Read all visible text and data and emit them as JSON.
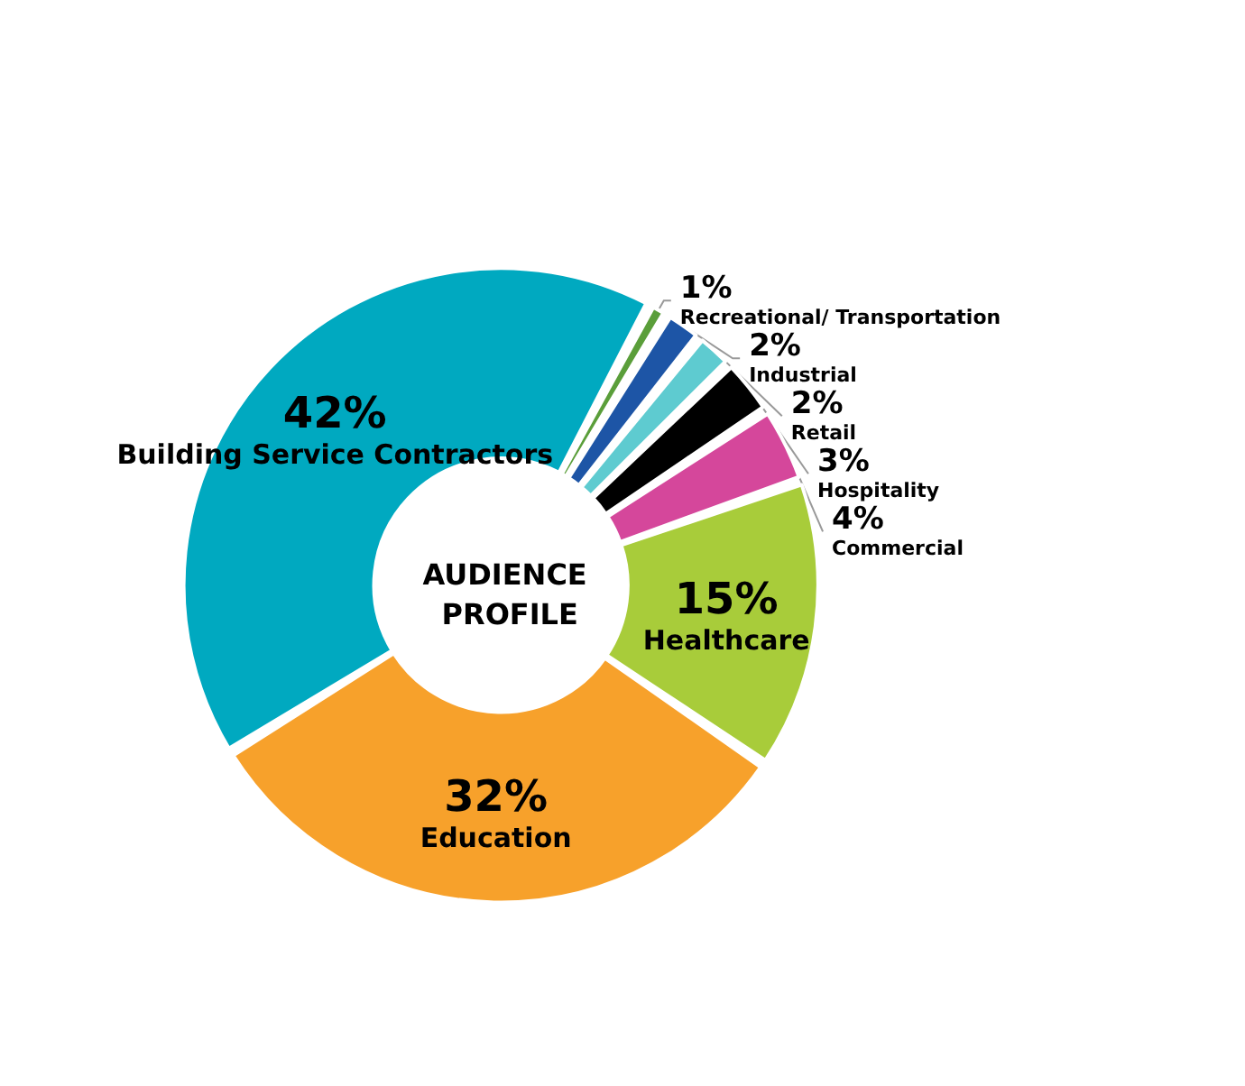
{
  "chart_data": {
    "type": "donut",
    "title": "AUDIENCE PROFILE",
    "categories": [
      "Recreational/ Transportation",
      "Industrial",
      "Retail",
      "Hospitality",
      "Commercial",
      "Healthcare",
      "Education",
      "Building Service Contractors"
    ],
    "values": [
      1,
      2,
      2,
      3,
      4,
      15,
      32,
      42
    ],
    "value_labels": [
      "1%",
      "2%",
      "2%",
      "3%",
      "4%",
      "15%",
      "32%",
      "42%"
    ],
    "colors": [
      "#5a9e3a",
      "#1d55a6",
      "#5ecbd0",
      "#000000",
      "#d5479b",
      "#a8cc3a",
      "#f7a12b",
      "#00a9c0"
    ],
    "legend": false
  }
}
